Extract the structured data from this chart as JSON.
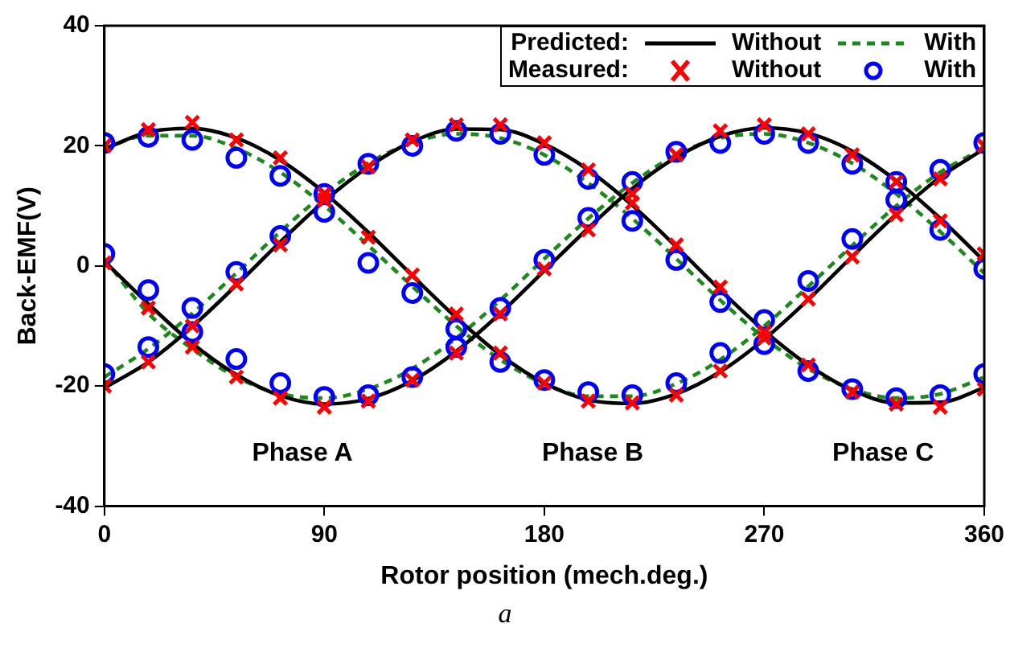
{
  "chart_data": {
    "type": "line",
    "xlabel": "Rotor position (mech.deg.)",
    "ylabel": "Back-EMF(V)",
    "x": [
      0,
      18,
      36,
      54,
      72,
      90,
      108,
      126,
      144,
      162,
      180,
      198,
      216,
      234,
      252,
      270,
      288,
      306,
      324,
      342,
      360
    ],
    "xlim": [
      0,
      360
    ],
    "xticks": [
      0,
      90,
      180,
      270,
      360
    ],
    "ylim": [
      -40,
      40
    ],
    "yticks": [
      -40,
      -20,
      0,
      20,
      40
    ],
    "grid": false,
    "legend": "top right",
    "annotations": [
      "Predicted:",
      "Measured:",
      "Phase A",
      "Phase B",
      "Phase C",
      "a"
    ],
    "series": [
      {
        "name": "Without",
        "color": "#000000",
        "line_style": "solid",
        "marker": "none",
        "values": [
          19.5,
          22.3,
          22.9,
          21.3,
          17.6,
          12.2,
          5.6,
          -1.6,
          -8.6,
          -14.8,
          -19.5,
          -22.3,
          -22.9,
          -21.3,
          -17.6,
          -12.2,
          -5.6,
          1.6,
          8.6,
          14.8,
          19.5
        ]
      },
      {
        "color": "#000000",
        "line_style": "solid",
        "marker": "none",
        "values": [
          -20.3,
          -16.0,
          -10.1,
          -3.2,
          4.0,
          10.8,
          16.5,
          20.7,
          22.8,
          22.7,
          20.3,
          16.0,
          10.1,
          3.2,
          -4.0,
          -10.8,
          -16.5,
          -20.7,
          -22.8,
          -22.7,
          -20.3
        ]
      },
      {
        "color": "#000000",
        "line_style": "solid",
        "marker": "none",
        "values": [
          0.8,
          -6.3,
          -12.9,
          -18.1,
          -21.6,
          -23.0,
          -22.1,
          -19.1,
          -14.2,
          -7.9,
          -0.8,
          6.3,
          12.9,
          18.1,
          21.6,
          23.0,
          22.1,
          19.1,
          14.2,
          7.9,
          0.8
        ]
      },
      {
        "name": "With",
        "color": "#1a8a1a",
        "line_style": "dashed",
        "marker": "none",
        "values": [
          19.6,
          21.7,
          21.7,
          19.6,
          15.6,
          10.0,
          3.4,
          -3.4,
          -10.0,
          -15.6,
          -19.6,
          -21.7,
          -21.7,
          -19.6,
          -15.6,
          -10.0,
          -3.4,
          3.4,
          10.0,
          15.6,
          19.6
        ]
      },
      {
        "color": "#1a8a1a",
        "line_style": "dashed",
        "marker": "none",
        "values": [
          -18.5,
          -13.8,
          -7.9,
          -1.2,
          5.7,
          12.0,
          17.1,
          20.5,
          22.0,
          21.3,
          18.5,
          13.8,
          7.9,
          1.2,
          -5.7,
          -12.0,
          -17.1,
          -20.5,
          -22.0,
          -21.3,
          -18.5
        ]
      },
      {
        "color": "#1a8a1a",
        "line_style": "dashed",
        "marker": "none",
        "values": [
          1.2,
          -7.9,
          -13.8,
          -18.5,
          -21.3,
          -22.0,
          -20.5,
          -17.1,
          -12.0,
          -5.7,
          1.2,
          7.9,
          13.8,
          18.5,
          21.3,
          22.0,
          20.5,
          17.1,
          12.0,
          5.7,
          -1.2
        ]
      },
      {
        "name": "Without",
        "type": "scatter",
        "color": "#ff0000",
        "marker": "cross",
        "values": [
          20,
          22.7,
          23.9,
          21,
          18,
          12,
          4.8,
          -1.5,
          -8,
          -14.5,
          -19.5,
          -22.5,
          -22.8,
          -21.5,
          -17.5,
          -12,
          -5.5,
          1.5,
          8.5,
          14.5,
          20
        ]
      },
      {
        "type": "scatter",
        "color": "#ff0000",
        "marker": "cross",
        "values": [
          -20,
          -16,
          -10,
          -3,
          3.5,
          11,
          16.5,
          21,
          23.5,
          23.5,
          20.5,
          16,
          10.5,
          3.5,
          -3.5,
          -11,
          -16.5,
          -21,
          -23,
          -23.5,
          -20.5
        ]
      },
      {
        "type": "scatter",
        "color": "#ff0000",
        "marker": "cross",
        "values": [
          0.5,
          -7,
          -13.5,
          -18.5,
          -22,
          -23.5,
          -22.5,
          -19,
          -14.5,
          -8,
          -0.5,
          6,
          12,
          18.5,
          22.5,
          23.5,
          22,
          18.5,
          14,
          7.5,
          2
        ]
      },
      {
        "name": "With",
        "type": "scatter",
        "color": "#0000ff",
        "marker": "circle",
        "values": [
          20.5,
          21.5,
          21,
          18,
          15,
          9,
          0.5,
          -4.5,
          -10.5,
          -16,
          -19,
          -21,
          -21.5,
          -19.5,
          -14.5,
          -9,
          -2.5,
          4.5,
          11,
          16,
          20.5
        ]
      },
      {
        "type": "scatter",
        "color": "#0000ff",
        "marker": "circle",
        "values": [
          -18,
          -13.5,
          -7,
          -1,
          5,
          12,
          17,
          20,
          22.5,
          22,
          18.5,
          14.5,
          7.5,
          1,
          -6,
          -13,
          -17.5,
          -20.5,
          -22,
          -21.5,
          -18
        ]
      },
      {
        "type": "scatter",
        "color": "#0000ff",
        "marker": "circle",
        "values": [
          2,
          -4,
          -11,
          -15.5,
          -19.5,
          -21.8,
          -21.5,
          -18.5,
          -13.5,
          -7,
          1,
          8,
          14,
          19,
          20.5,
          22,
          20.5,
          17,
          14,
          6,
          -0.5
        ]
      }
    ]
  }
}
